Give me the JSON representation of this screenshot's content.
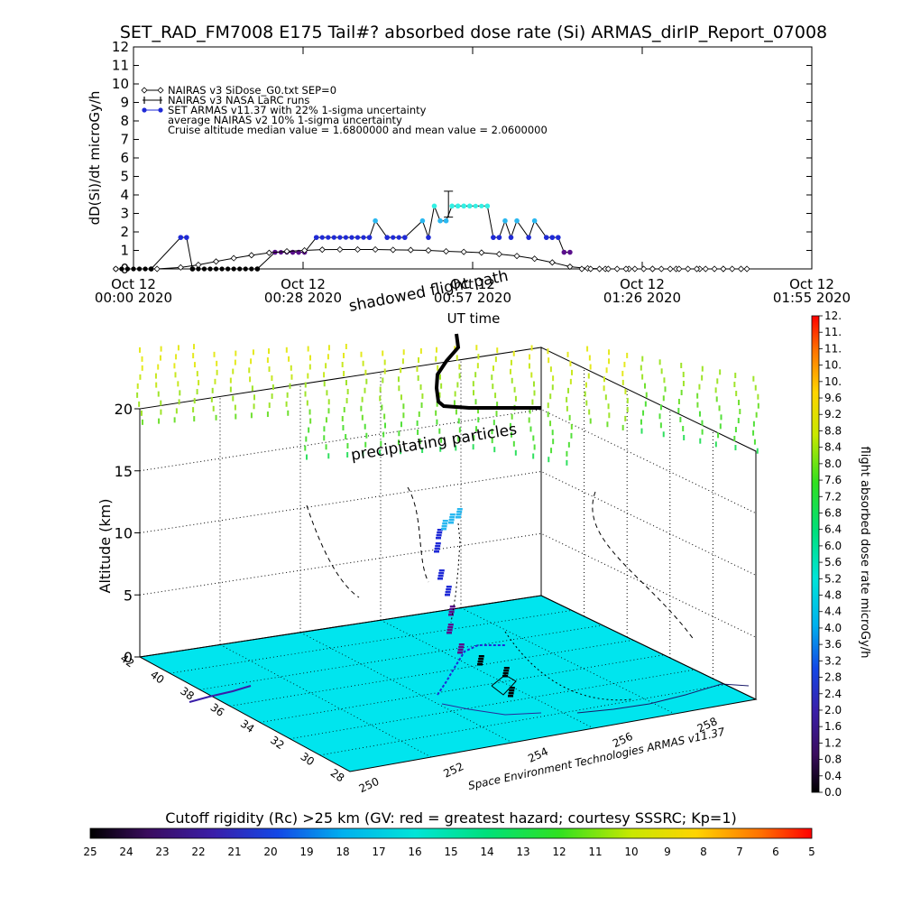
{
  "title": "SET_RAD_FM7008  E175 Tail#? absorbed dose rate (Si) ARMAS_dirIP_Report_07008",
  "chart_data": [
    {
      "type": "line",
      "name": "dose-rate-timeseries",
      "ylabel": "dD(Si)/dt microGy/h",
      "xlabel": "UT time",
      "ylim": [
        0,
        12
      ],
      "yticks": [
        "0",
        "1",
        "2",
        "3",
        "4",
        "5",
        "6",
        "7",
        "8",
        "9",
        "10",
        "11",
        "12"
      ],
      "xlim_minutes": [
        0,
        115
      ],
      "xticks": [
        {
          "minute": 0,
          "line1": "Oct 12",
          "line2": "00:00 2020"
        },
        {
          "minute": 28.75,
          "line1": "Oct 12",
          "line2": "00:28 2020"
        },
        {
          "minute": 57.5,
          "line1": "Oct 12",
          "line2": "00:57 2020"
        },
        {
          "minute": 86.25,
          "line1": "Oct 12",
          "line2": "01:26 2020"
        },
        {
          "minute": 115,
          "line1": "Oct 12",
          "line2": "01:55 2020"
        }
      ],
      "legend": [
        {
          "marker": "diamond",
          "text": "NAIRAS v3 SiDose_G0.txt SEP=0"
        },
        {
          "marker": "cross",
          "text": "NAIRAS v3 NASA LaRC runs"
        },
        {
          "marker": "dot",
          "text": "SET ARMAS v11.37 with 22% 1-sigma uncertainty"
        },
        {
          "marker": "none",
          "text": "average NAIRAS v2 10% 1-sigma uncertainty"
        },
        {
          "marker": "none",
          "text": "Cruise altitude median value = 1.6800000 and mean value = 2.0600000"
        }
      ],
      "legend_position": "top-left",
      "series": [
        {
          "marker": "dot",
          "x": [
            -3.0,
            3.0,
            8.0,
            9.0,
            10.0,
            21.0,
            24.0,
            27.0,
            28.0,
            29.0,
            31.0,
            40.0,
            41.0,
            43.0,
            46.0,
            49.0,
            50.0,
            51.0,
            52.0,
            53.0,
            54.0,
            55.0,
            56.0,
            57.0,
            60.0,
            61.0,
            62.0,
            63.0,
            64.0,
            65.0,
            67.0,
            68.0,
            70.0,
            71.0,
            72.0,
            73.0,
            74.0
          ],
          "y": [
            0.0,
            0.0,
            1.7,
            1.7,
            0.0,
            0.0,
            0.9,
            0.9,
            0.9,
            0.9,
            1.7,
            1.7,
            2.6,
            1.7,
            1.7,
            2.6,
            1.7,
            3.4,
            2.6,
            2.6,
            3.4,
            3.4,
            3.4,
            3.4,
            3.4,
            1.7,
            1.7,
            2.6,
            1.7,
            2.6,
            1.7,
            2.6,
            1.7,
            1.7,
            1.7,
            0.9,
            0.9
          ]
        },
        {
          "marker": "diamond",
          "x": [
            -3.0,
            4.0,
            8.0,
            11.0,
            14.0,
            17.0,
            20.0,
            23.0,
            26.0,
            29.0,
            32.0,
            35.0,
            38.0,
            41.0,
            44.0,
            47.0,
            50.0,
            53.0,
            56.0,
            59.0,
            62.0,
            65.0,
            68.0,
            71.0,
            74.0,
            77.0,
            80.0,
            84.0,
            88.0,
            92.0,
            96.0,
            100.0,
            104.0
          ],
          "y": [
            0.0,
            0.0,
            0.08,
            0.22,
            0.4,
            0.58,
            0.74,
            0.87,
            0.95,
            1.0,
            1.04,
            1.05,
            1.05,
            1.05,
            1.03,
            1.02,
            1.0,
            0.95,
            0.92,
            0.88,
            0.8,
            0.7,
            0.55,
            0.35,
            0.12,
            0.03,
            0.0,
            0.0,
            0.0,
            0.0,
            0.0,
            0.0,
            0.0
          ]
        }
      ],
      "annotations": [
        "shadowed flight path"
      ]
    },
    {
      "type": "scatter",
      "name": "3d-flight-volume",
      "ylabel": "Altitude (km)",
      "zticks": [
        "0",
        "5",
        "10",
        "15",
        "20"
      ],
      "latitude_ticks": [
        "42",
        "40",
        "38",
        "36",
        "34",
        "32",
        "30",
        "28"
      ],
      "longitude_ticks": [
        "250",
        "252",
        "254",
        "256",
        "258"
      ],
      "annotations": [
        "precipitating particles"
      ],
      "credit": "Space Environment Technologies ARMAS v11.37",
      "flight_track": [
        {
          "lon": 253.9,
          "lat": 30.5,
          "alt_km": 0.5
        },
        {
          "lon": 253.8,
          "lat": 31.0,
          "alt_km": 0.8
        },
        {
          "lon": 253.4,
          "lat": 31.8,
          "alt_km": 1.2
        },
        {
          "lon": 252.9,
          "lat": 32.6,
          "alt_km": 2.0
        },
        {
          "lon": 252.8,
          "lat": 33.5,
          "alt_km": 3.5
        },
        {
          "lon": 252.7,
          "lat": 34.3,
          "alt_km": 5.5
        },
        {
          "lon": 252.6,
          "lat": 35.0,
          "alt_km": 7.5
        },
        {
          "lon": 252.6,
          "lat": 35.6,
          "alt_km": 9.5
        },
        {
          "lon": 252.6,
          "lat": 36.2,
          "alt_km": 11.3
        }
      ]
    },
    {
      "type": "heatmap",
      "name": "dose-rate-colorbar",
      "label": "flight absorbed dose rate microGy/h",
      "ticks": [
        "0.0",
        "0.4",
        "0.8",
        "1.2",
        "1.6",
        "2.0",
        "2.4",
        "2.8",
        "3.2",
        "3.6",
        "4.0",
        "4.4",
        "4.8",
        "5.2",
        "5.6",
        "6.0",
        "6.4",
        "6.8",
        "7.2",
        "7.6",
        "8.0",
        "8.4",
        "8.8",
        "9.2",
        "9.6",
        "10.",
        "10.",
        "11.",
        "11.",
        "12."
      ]
    },
    {
      "type": "heatmap",
      "name": "cutoff-rigidity-colorbar",
      "label": "Cutoff rigidity (Rc) >25 km (GV: red = greatest hazard; courtesy SSSRC; Kp=1)",
      "ticks": [
        "25",
        "24",
        "23",
        "22",
        "21",
        "20",
        "19",
        "18",
        "17",
        "16",
        "15",
        "14",
        "13",
        "12",
        "11",
        "10",
        "9",
        "8",
        "7",
        "6",
        "5"
      ]
    }
  ],
  "colors": {
    "floor": "#00e5ee",
    "grid": "#000000",
    "dot_low": "#5a0f8c",
    "dot_mid": "#1f2ad6",
    "dot_high": "#2ab8f0",
    "dot_peak": "#33f0e4",
    "precip_top": "#e5e91e",
    "precip_bottom": "#52e03a"
  }
}
